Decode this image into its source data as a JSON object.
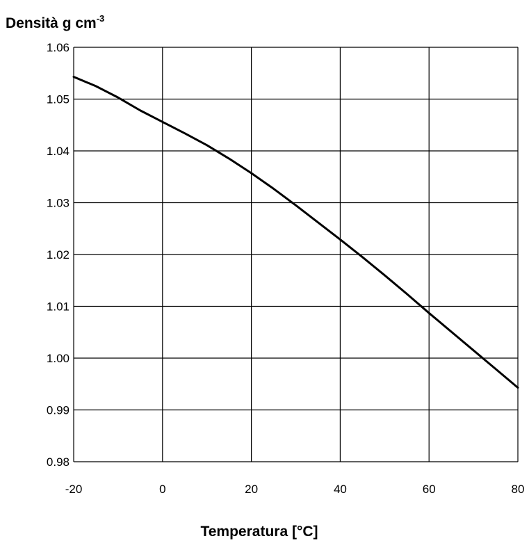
{
  "chart_data": {
    "type": "line",
    "ylabel": "Densità g cm",
    "ylabel_superscript": "-3",
    "xlabel": "Temperatura [°C]",
    "xlim": [
      -20,
      80
    ],
    "ylim": [
      0.98,
      1.06
    ],
    "grid": true,
    "x_ticks": [
      -20,
      0,
      20,
      40,
      60,
      80
    ],
    "x_tick_labels": [
      "-20",
      "0",
      "20",
      "40",
      "60",
      "80"
    ],
    "y_ticks": [
      0.98,
      0.99,
      1.0,
      1.01,
      1.02,
      1.03,
      1.04,
      1.05,
      1.06
    ],
    "y_tick_labels": [
      "0.98",
      "0.99",
      "1.00",
      "1.01",
      "1.02",
      "1.03",
      "1.04",
      "1.05",
      "1.06"
    ],
    "line_color": "#000000",
    "grid_color": "#000000",
    "series": [
      {
        "x": [
          -20,
          -15,
          -10,
          -5,
          0,
          5,
          10,
          15,
          20,
          25,
          30,
          35,
          40,
          45,
          50,
          55,
          60,
          65,
          70,
          75,
          80
        ],
        "y": [
          1.0543,
          1.0525,
          1.0503,
          1.0478,
          1.0456,
          1.0434,
          1.0411,
          1.0385,
          1.0357,
          1.0327,
          1.0295,
          1.0262,
          1.0229,
          1.0195,
          1.016,
          1.0124,
          1.0087,
          1.0051,
          1.0015,
          0.9979,
          0.9943
        ]
      }
    ]
  }
}
